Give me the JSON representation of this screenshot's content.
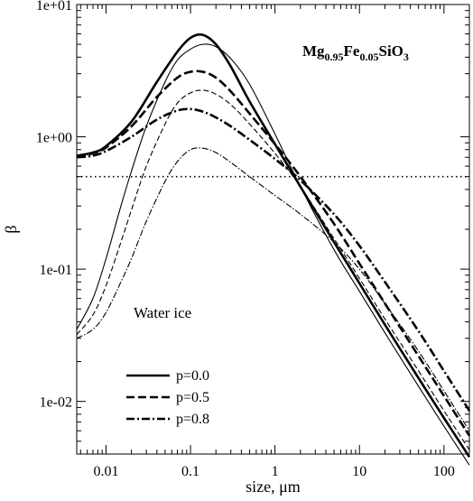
{
  "chart_data": {
    "type": "line",
    "title": "",
    "xlabel": "size, μm",
    "ylabel": "β",
    "xscale": "log",
    "yscale": "log",
    "xlim": [
      0.0045,
      200
    ],
    "ylim": [
      0.004,
      10
    ],
    "grid": false,
    "legend_position": "bottom-left",
    "x_ticks": [
      {
        "value": 0.01,
        "label": "0.01"
      },
      {
        "value": 0.1,
        "label": "0.1"
      },
      {
        "value": 1,
        "label": "1"
      },
      {
        "value": 10,
        "label": "10"
      },
      {
        "value": 100,
        "label": "100"
      }
    ],
    "y_ticks": [
      {
        "value": 10,
        "label": "1e+01"
      },
      {
        "value": 1,
        "label": "1e+00"
      },
      {
        "value": 0.1,
        "label": "1e-01"
      },
      {
        "value": 0.01,
        "label": "1e-02"
      }
    ],
    "annotations": {
      "material": {
        "base1": "Mg",
        "sub1": "0.95",
        "base2": "Fe",
        "sub2": "0.05",
        "base3": "SiO",
        "sub3": "3"
      },
      "water_ice": "Water ice"
    },
    "legend": [
      {
        "label": "p=0.0",
        "style": "solid"
      },
      {
        "label": "p=0.5",
        "style": "dashed"
      },
      {
        "label": "p=0.8",
        "style": "dashdot"
      }
    ],
    "reference_line": {
      "y": 0.5,
      "style": "dotted"
    },
    "series": [
      {
        "material": "MgFeSiO3",
        "porosity": "p=0.0",
        "style": "solid",
        "weight": "thick",
        "x": [
          0.0045,
          0.007,
          0.01,
          0.02,
          0.04,
          0.07,
          0.1,
          0.14,
          0.2,
          0.3,
          0.5,
          1,
          2,
          5,
          10,
          20,
          50,
          100,
          200
        ],
        "y": [
          0.72,
          0.76,
          0.85,
          1.3,
          2.6,
          4.4,
          5.6,
          5.9,
          5.0,
          3.4,
          1.85,
          0.88,
          0.42,
          0.16,
          0.078,
          0.038,
          0.015,
          0.0075,
          0.0038
        ]
      },
      {
        "material": "MgFeSiO3",
        "porosity": "p=0.5",
        "style": "dashed",
        "weight": "thick",
        "x": [
          0.0045,
          0.007,
          0.01,
          0.02,
          0.04,
          0.07,
          0.1,
          0.14,
          0.2,
          0.3,
          0.5,
          1,
          2,
          5,
          10,
          20,
          50,
          100,
          200
        ],
        "y": [
          0.71,
          0.75,
          0.83,
          1.2,
          2.0,
          2.8,
          3.1,
          3.1,
          2.8,
          2.2,
          1.5,
          0.88,
          0.5,
          0.22,
          0.11,
          0.055,
          0.022,
          0.011,
          0.0055
        ]
      },
      {
        "material": "MgFeSiO3",
        "porosity": "p=0.8",
        "style": "dashdot",
        "weight": "thick",
        "x": [
          0.0045,
          0.007,
          0.01,
          0.02,
          0.04,
          0.07,
          0.1,
          0.14,
          0.2,
          0.3,
          0.5,
          1,
          2,
          5,
          10,
          20,
          50,
          100,
          200
        ],
        "y": [
          0.7,
          0.72,
          0.78,
          1.0,
          1.35,
          1.58,
          1.62,
          1.55,
          1.4,
          1.2,
          0.95,
          0.68,
          0.47,
          0.26,
          0.15,
          0.08,
          0.034,
          0.017,
          0.0085
        ]
      },
      {
        "material": "Water ice",
        "porosity": "p=0.0",
        "style": "solid",
        "weight": "thin",
        "x": [
          0.0045,
          0.007,
          0.01,
          0.015,
          0.02,
          0.03,
          0.05,
          0.07,
          0.1,
          0.14,
          0.2,
          0.3,
          0.5,
          1,
          2,
          5,
          10,
          20,
          50,
          100,
          200
        ],
        "y": [
          0.035,
          0.06,
          0.12,
          0.3,
          0.55,
          1.2,
          2.6,
          3.8,
          4.6,
          5.0,
          4.8,
          3.9,
          2.5,
          1.05,
          0.42,
          0.14,
          0.068,
          0.033,
          0.013,
          0.0065,
          0.0033
        ]
      },
      {
        "material": "Water ice",
        "porosity": "p=0.5",
        "style": "dashed",
        "weight": "thin",
        "x": [
          0.0045,
          0.007,
          0.01,
          0.015,
          0.02,
          0.03,
          0.05,
          0.07,
          0.1,
          0.14,
          0.2,
          0.3,
          0.5,
          1,
          2,
          5,
          10,
          20,
          50,
          100,
          200
        ],
        "y": [
          0.032,
          0.045,
          0.075,
          0.16,
          0.28,
          0.6,
          1.25,
          1.8,
          2.15,
          2.25,
          2.1,
          1.75,
          1.25,
          0.75,
          0.42,
          0.17,
          0.085,
          0.042,
          0.017,
          0.0085,
          0.0043
        ]
      },
      {
        "material": "Water ice",
        "porosity": "p=0.8",
        "style": "dashdot",
        "weight": "thin",
        "x": [
          0.0045,
          0.007,
          0.01,
          0.015,
          0.02,
          0.03,
          0.05,
          0.07,
          0.1,
          0.14,
          0.2,
          0.3,
          0.5,
          1,
          2,
          5,
          10,
          20,
          50,
          100,
          200
        ],
        "y": [
          0.03,
          0.035,
          0.047,
          0.08,
          0.12,
          0.23,
          0.46,
          0.65,
          0.8,
          0.82,
          0.76,
          0.64,
          0.5,
          0.36,
          0.26,
          0.16,
          0.1,
          0.055,
          0.024,
          0.012,
          0.006
        ]
      }
    ]
  }
}
